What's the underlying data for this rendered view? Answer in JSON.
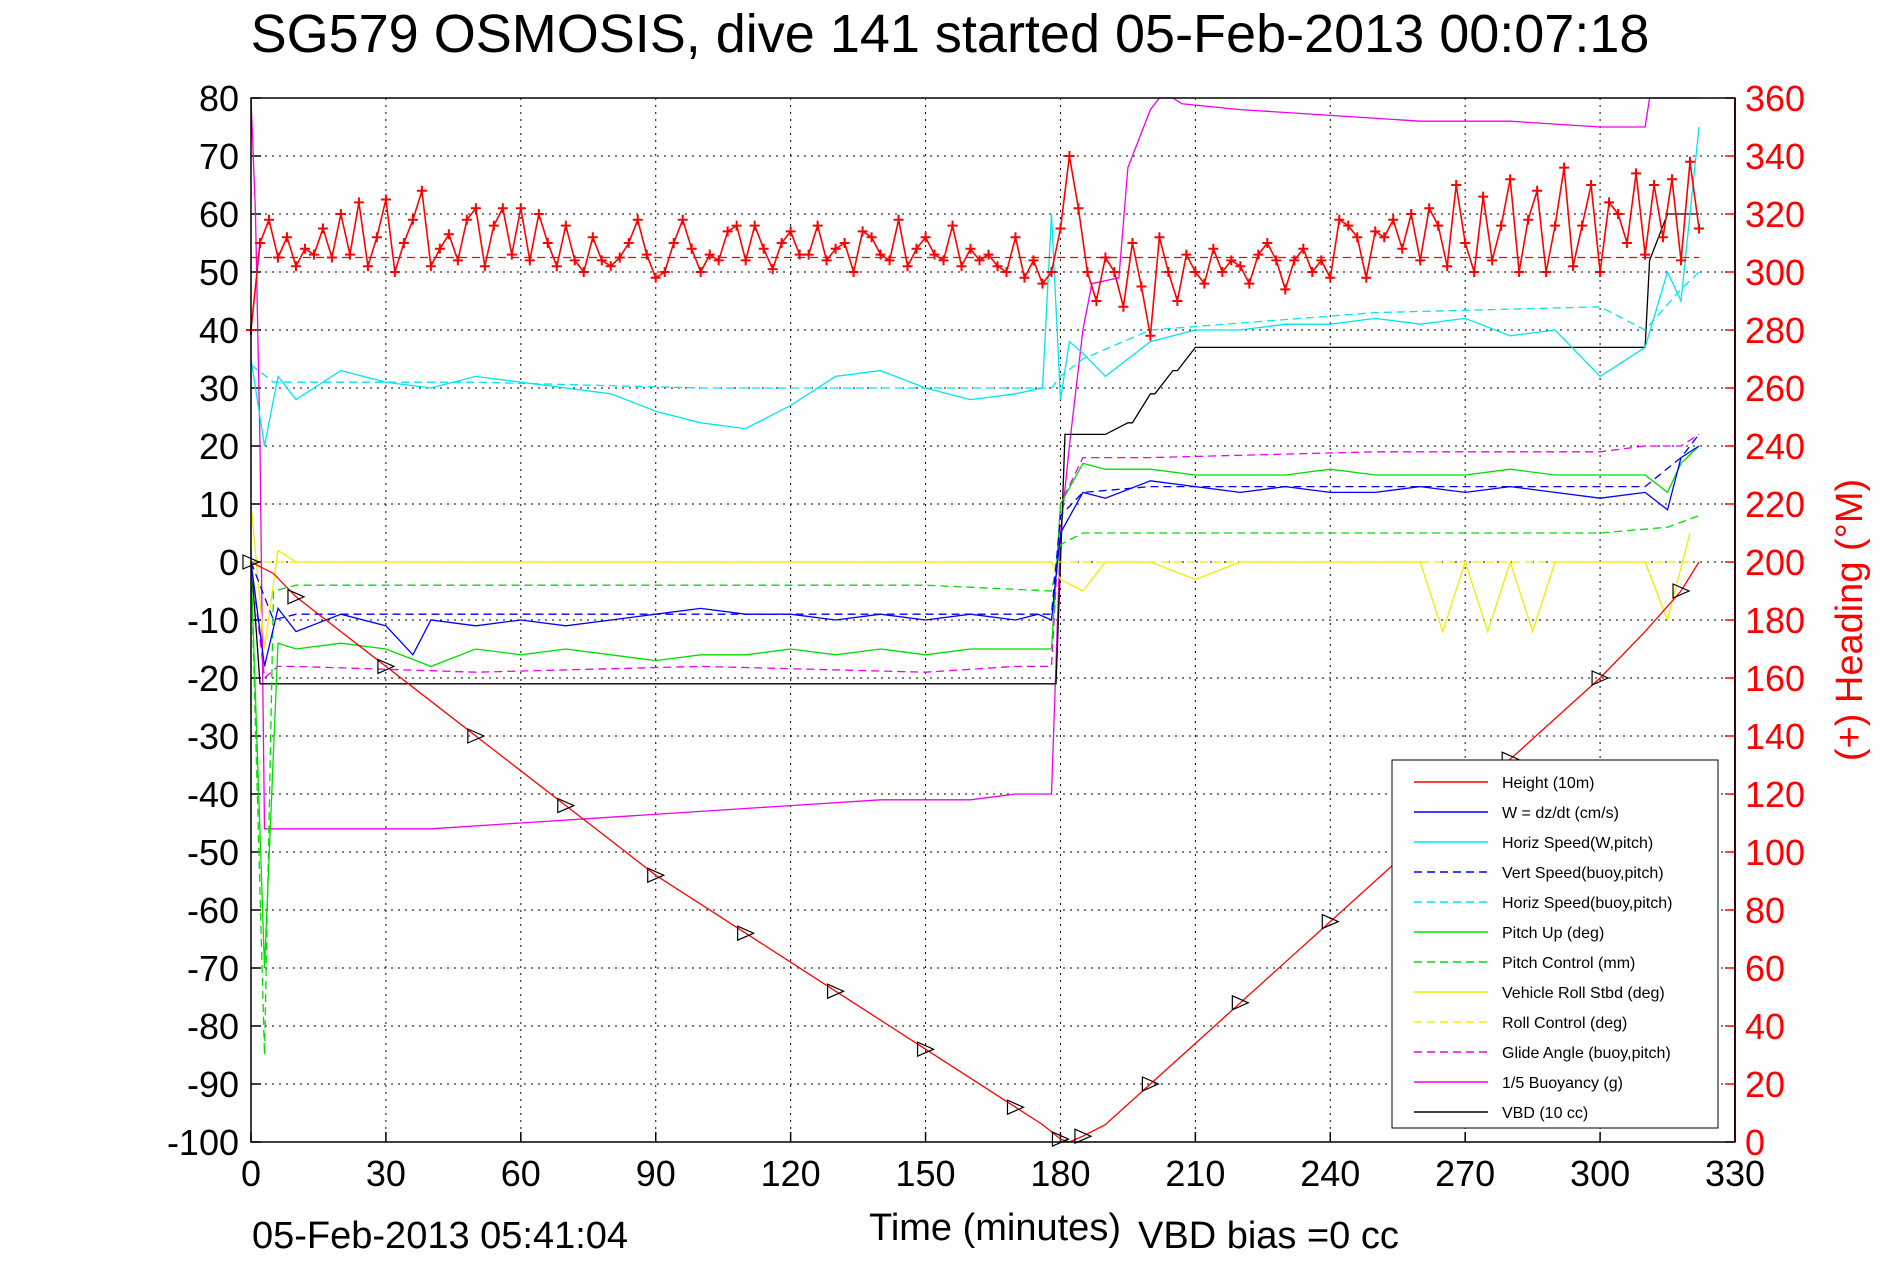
{
  "chart_data": {
    "type": "line",
    "title": "SG579 OSMOSIS, dive 141 started 05-Feb-2013 00:07:18",
    "xlabel": "Time (minutes)",
    "ylabel_right": "(+) Heading (°M)",
    "footer_date": "05-Feb-2013 05:41:04",
    "footer_bias": "VBD bias =0 cc",
    "xlim": [
      0,
      330
    ],
    "ylim": [
      -100,
      80
    ],
    "ylim_right": [
      0,
      360
    ],
    "x_ticks": [
      0,
      30,
      60,
      90,
      120,
      150,
      180,
      210,
      240,
      270,
      300,
      330
    ],
    "y_ticks": [
      -100,
      -90,
      -80,
      -70,
      -60,
      -50,
      -40,
      -30,
      -20,
      -10,
      0,
      10,
      20,
      30,
      40,
      50,
      60,
      70,
      80
    ],
    "y_ticks_right": [
      0,
      20,
      40,
      60,
      80,
      100,
      120,
      140,
      160,
      180,
      200,
      220,
      240,
      260,
      280,
      300,
      320,
      340,
      360
    ],
    "grid": true,
    "legend_position": "bottom-right",
    "colors": {
      "height": "#ff0000",
      "w": "#0000ff",
      "horiz_w": "#00e5ee",
      "vert_buoy": "#0000ff",
      "horiz_buoy": "#00e5ee",
      "pitch_up": "#00dd00",
      "pitch_ctrl": "#00dd00",
      "roll": "#eeee00",
      "roll_ctrl": "#eeee00",
      "glide": "#ee00ee",
      "buoyancy": "#ee00ee",
      "vbd": "#000000",
      "heading": "#ff0000",
      "axis_right": "#ff0000"
    },
    "series": [
      {
        "key": "height",
        "name": "Height (10m)",
        "dash": false,
        "x": [
          0,
          5,
          10,
          20,
          30,
          40,
          50,
          60,
          70,
          80,
          90,
          100,
          110,
          120,
          130,
          140,
          150,
          160,
          170,
          176,
          180,
          182,
          185,
          190,
          200,
          210,
          220,
          230,
          240,
          250,
          260,
          270,
          280,
          290,
          300,
          310,
          318,
          322
        ],
        "y": [
          0,
          -2,
          -6,
          -12,
          -18,
          -24,
          -30,
          -36,
          -42,
          -48,
          -54,
          -59,
          -64,
          -69,
          -74,
          -79,
          -84,
          -89,
          -94,
          -97,
          -99.5,
          -100,
          -99,
          -97,
          -90,
          -83,
          -76,
          -69,
          -62,
          -55,
          -48,
          -41,
          -34,
          -27,
          -20,
          -12,
          -5,
          0
        ]
      },
      {
        "key": "w",
        "name": "W = dz/dt (cm/s)",
        "dash": false,
        "x": [
          0,
          3,
          6,
          10,
          20,
          30,
          36,
          40,
          50,
          60,
          70,
          80,
          90,
          100,
          110,
          120,
          130,
          140,
          150,
          160,
          170,
          175,
          178,
          180,
          185,
          190,
          200,
          210,
          220,
          230,
          240,
          250,
          260,
          270,
          280,
          290,
          300,
          310,
          315,
          318,
          322
        ],
        "y": [
          0,
          -18,
          -8,
          -12,
          -9,
          -11,
          -16,
          -10,
          -11,
          -10,
          -11,
          -10,
          -9,
          -8,
          -9,
          -9,
          -10,
          -9,
          -10,
          -9,
          -10,
          -9,
          -10,
          5,
          12,
          11,
          14,
          13,
          12,
          13,
          12,
          12,
          13,
          12,
          13,
          12,
          11,
          12,
          9,
          18,
          20
        ]
      },
      {
        "key": "horiz_w",
        "name": "Horiz Speed(W,pitch)",
        "dash": false,
        "x": [
          0,
          3,
          6,
          10,
          20,
          30,
          40,
          50,
          60,
          70,
          80,
          90,
          100,
          110,
          120,
          130,
          140,
          150,
          160,
          170,
          176,
          178,
          180,
          182,
          185,
          190,
          200,
          210,
          220,
          230,
          240,
          250,
          260,
          270,
          280,
          290,
          300,
          310,
          315,
          318,
          322
        ],
        "y": [
          35,
          20,
          32,
          28,
          33,
          31,
          30,
          32,
          31,
          30,
          29,
          26,
          24,
          23,
          27,
          32,
          33,
          30,
          28,
          29,
          30,
          60,
          28,
          38,
          36,
          32,
          38,
          40,
          40,
          41,
          41,
          42,
          41,
          42,
          39,
          40,
          32,
          37,
          50,
          45,
          75
        ]
      },
      {
        "key": "vert_buoy",
        "name": "Vert Speed(buoy,pitch)",
        "dash": true,
        "x": [
          0,
          5,
          10,
          50,
          100,
          150,
          170,
          178,
          180,
          185,
          200,
          250,
          300,
          310,
          318,
          322
        ],
        "y": [
          0,
          -10,
          -9,
          -9,
          -9,
          -9,
          -9,
          -9,
          8,
          12,
          13,
          13,
          13,
          13,
          18,
          22
        ]
      },
      {
        "key": "horiz_buoy",
        "name": "Horiz Speed(buoy,pitch)",
        "dash": true,
        "x": [
          0,
          5,
          10,
          50,
          100,
          150,
          170,
          178,
          180,
          185,
          200,
          250,
          300,
          310,
          318,
          322
        ],
        "y": [
          34,
          31,
          31,
          31,
          30,
          30,
          30,
          30,
          32,
          35,
          40,
          43,
          44,
          40,
          47,
          50
        ]
      },
      {
        "key": "pitch_up",
        "name": "Pitch Up (deg)",
        "dash": false,
        "x": [
          0,
          3,
          6,
          10,
          20,
          30,
          40,
          50,
          60,
          70,
          80,
          90,
          100,
          110,
          120,
          130,
          140,
          150,
          160,
          170,
          178,
          180,
          185,
          190,
          200,
          210,
          220,
          230,
          240,
          250,
          260,
          270,
          280,
          290,
          300,
          310,
          315,
          318,
          322
        ],
        "y": [
          0,
          -70,
          -14,
          -15,
          -14,
          -15,
          -18,
          -15,
          -16,
          -15,
          -16,
          -17,
          -16,
          -16,
          -15,
          -16,
          -15,
          -16,
          -15,
          -15,
          -15,
          10,
          17,
          16,
          16,
          15,
          15,
          15,
          16,
          15,
          15,
          15,
          16,
          15,
          15,
          15,
          12,
          17,
          20
        ]
      },
      {
        "key": "pitch_ctrl",
        "name": "Pitch Control (mm)",
        "dash": true,
        "x": [
          0,
          3,
          5,
          10,
          50,
          100,
          150,
          178,
          180,
          185,
          200,
          250,
          300,
          315,
          322
        ],
        "y": [
          0,
          -85,
          -5,
          -4,
          -4,
          -4,
          -4,
          -5,
          3,
          5,
          5,
          5,
          5,
          6,
          8
        ]
      },
      {
        "key": "roll",
        "name": "Vehicle Roll Stbd (deg)",
        "dash": false,
        "x": [
          0,
          3,
          6,
          10,
          20,
          30,
          40,
          50,
          60,
          70,
          80,
          90,
          100,
          110,
          120,
          130,
          140,
          150,
          160,
          170,
          178,
          180,
          185,
          190,
          200,
          210,
          220,
          230,
          240,
          250,
          260,
          265,
          270,
          275,
          280,
          285,
          290,
          300,
          310,
          315,
          320
        ],
        "y": [
          10,
          -15,
          2,
          0,
          0,
          0,
          0,
          0,
          0,
          0,
          0,
          0,
          0,
          0,
          0,
          0,
          0,
          0,
          0,
          0,
          0,
          -3,
          -5,
          0,
          0,
          -3,
          0,
          0,
          0,
          0,
          0,
          -12,
          0,
          -12,
          0,
          -12,
          0,
          0,
          0,
          -10,
          5
        ]
      },
      {
        "key": "roll_ctrl",
        "name": "Roll Control (deg)",
        "dash": true,
        "x": [
          0,
          5,
          50,
          100,
          150,
          180,
          200,
          250,
          300,
          320
        ],
        "y": [
          0,
          0,
          0,
          0,
          0,
          0,
          0,
          0,
          0,
          0
        ]
      },
      {
        "key": "glide",
        "name": "Glide Angle (buoy,pitch)",
        "dash": true,
        "x": [
          0,
          3,
          6,
          10,
          50,
          100,
          150,
          170,
          178,
          180,
          185,
          200,
          250,
          300,
          310,
          318,
          322
        ],
        "y": [
          0,
          -20,
          -18,
          -18,
          -19,
          -18,
          -19,
          -18,
          -18,
          10,
          18,
          18,
          19,
          19,
          20,
          20,
          22
        ]
      },
      {
        "key": "buoyancy",
        "name": "1/5 Buoyancy (g)",
        "dash": false,
        "x": [
          0,
          1,
          2,
          3,
          10,
          20,
          40,
          60,
          80,
          100,
          120,
          140,
          160,
          170,
          178,
          180,
          182,
          185,
          187,
          193,
          195,
          200,
          202,
          205,
          207,
          220,
          240,
          260,
          280,
          300,
          310,
          311,
          322
        ],
        "y": [
          80,
          60,
          20,
          -46,
          -46,
          -46,
          -46,
          -45,
          -44,
          -43,
          -42,
          -41,
          -41,
          -40,
          -40,
          5,
          20,
          40,
          48,
          49,
          68,
          78,
          80,
          80,
          79,
          78,
          77,
          76,
          76,
          75,
          75,
          80,
          80
        ]
      },
      {
        "key": "vbd",
        "name": "VBD (10 cc)",
        "dash": false,
        "x": [
          0,
          1,
          2,
          3,
          10,
          50,
          100,
          150,
          170,
          178,
          179,
          180,
          181,
          190,
          195,
          196,
          200,
          201,
          205,
          206,
          210,
          211,
          220,
          250,
          280,
          300,
          310,
          311,
          315,
          318,
          322
        ],
        "y": [
          0,
          -10,
          -21,
          -21,
          -21,
          -21,
          -21,
          -21,
          -21,
          -21,
          -21,
          0,
          22,
          22,
          24,
          24,
          29,
          29,
          33,
          33,
          37,
          37,
          37,
          37,
          37,
          37,
          37,
          52,
          60,
          60,
          60
        ]
      }
    ],
    "heading": {
      "name": "(+) Heading (°M)",
      "ref_value": 305,
      "x": [
        0,
        2,
        4,
        6,
        8,
        10,
        12,
        14,
        16,
        18,
        20,
        22,
        24,
        26,
        28,
        30,
        32,
        34,
        36,
        38,
        40,
        42,
        44,
        46,
        48,
        50,
        52,
        54,
        56,
        58,
        60,
        62,
        64,
        66,
        68,
        70,
        72,
        74,
        76,
        78,
        80,
        82,
        84,
        86,
        88,
        90,
        92,
        94,
        96,
        98,
        100,
        102,
        104,
        106,
        108,
        110,
        112,
        114,
        116,
        118,
        120,
        122,
        124,
        126,
        128,
        130,
        132,
        134,
        136,
        138,
        140,
        142,
        144,
        146,
        148,
        150,
        152,
        154,
        156,
        158,
        160,
        162,
        164,
        166,
        168,
        170,
        172,
        174,
        176,
        178,
        180,
        182,
        184,
        186,
        188,
        190,
        192,
        194,
        196,
        198,
        200,
        202,
        204,
        206,
        208,
        210,
        212,
        214,
        216,
        218,
        220,
        222,
        224,
        226,
        228,
        230,
        232,
        234,
        236,
        238,
        240,
        242,
        244,
        246,
        248,
        250,
        252,
        254,
        256,
        258,
        260,
        262,
        264,
        266,
        268,
        270,
        272,
        274,
        276,
        278,
        280,
        282,
        284,
        286,
        288,
        290,
        292,
        294,
        296,
        298,
        300,
        302,
        304,
        306,
        308,
        310,
        312,
        314,
        316,
        318,
        320,
        322
      ],
      "y": [
        280,
        310,
        318,
        305,
        312,
        302,
        308,
        306,
        315,
        305,
        320,
        306,
        324,
        302,
        312,
        325,
        300,
        310,
        318,
        328,
        302,
        308,
        313,
        304,
        318,
        322,
        302,
        316,
        322,
        306,
        322,
        304,
        320,
        310,
        302,
        316,
        304,
        300,
        312,
        304,
        302,
        305,
        310,
        318,
        306,
        298,
        300,
        310,
        318,
        308,
        300,
        306,
        304,
        314,
        316,
        304,
        316,
        308,
        301,
        310,
        314,
        306,
        306,
        316,
        304,
        308,
        310,
        300,
        314,
        312,
        306,
        304,
        318,
        302,
        308,
        312,
        306,
        304,
        316,
        302,
        308,
        304,
        306,
        302,
        300,
        312,
        298,
        304,
        296,
        300,
        315,
        340,
        322,
        300,
        290,
        305,
        300,
        288,
        310,
        295,
        278,
        312,
        300,
        290,
        306,
        300,
        296,
        308,
        300,
        304,
        302,
        296,
        306,
        310,
        304,
        294,
        304,
        308,
        300,
        304,
        298,
        318,
        316,
        312,
        298,
        314,
        312,
        318,
        308,
        320,
        304,
        322,
        316,
        302,
        330,
        310,
        300,
        326,
        304,
        316,
        332,
        300,
        318,
        328,
        300,
        316,
        336,
        302,
        316,
        330,
        300,
        324,
        320,
        310,
        334,
        306,
        330,
        312,
        332,
        304,
        338,
        315
      ]
    }
  }
}
